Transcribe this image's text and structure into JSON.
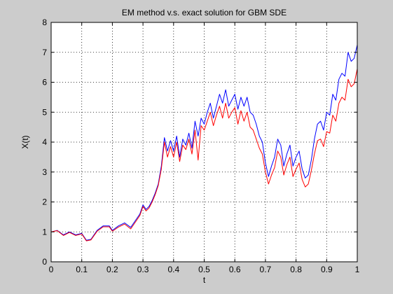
{
  "window": {
    "background": "#cccccc"
  },
  "chart_data": {
    "type": "line",
    "title": "EM method v.s. exact solution for GBM SDE",
    "xlabel": "t",
    "ylabel": "X(t)",
    "xlim": [
      0,
      1
    ],
    "ylim": [
      0,
      8
    ],
    "xticks": [
      0,
      0.1,
      0.2,
      0.3,
      0.4,
      0.5,
      0.6,
      0.7,
      0.8,
      0.9,
      1
    ],
    "xtick_labels": [
      "0",
      "0.1",
      "0.2",
      "0.3",
      "0.4",
      "0.5",
      "0.6",
      "0.7",
      "0.8",
      "0.9",
      "1"
    ],
    "yticks": [
      0,
      1,
      2,
      3,
      4,
      5,
      6,
      7,
      8
    ],
    "ytick_labels": [
      "0",
      "1",
      "2",
      "3",
      "4",
      "5",
      "6",
      "7",
      "8"
    ],
    "grid": true,
    "series": [
      {
        "color": "#0000ff",
        "x": [
          0,
          0.02,
          0.04,
          0.06,
          0.08,
          0.1,
          0.115,
          0.13,
          0.15,
          0.17,
          0.19,
          0.2,
          0.22,
          0.24,
          0.26,
          0.28,
          0.29,
          0.3,
          0.31,
          0.32,
          0.33,
          0.34,
          0.35,
          0.36,
          0.37,
          0.38,
          0.39,
          0.4,
          0.41,
          0.42,
          0.43,
          0.44,
          0.45,
          0.46,
          0.47,
          0.48,
          0.49,
          0.5,
          0.51,
          0.52,
          0.53,
          0.54,
          0.55,
          0.56,
          0.57,
          0.58,
          0.59,
          0.6,
          0.61,
          0.62,
          0.63,
          0.64,
          0.65,
          0.66,
          0.67,
          0.68,
          0.69,
          0.7,
          0.71,
          0.72,
          0.73,
          0.74,
          0.75,
          0.76,
          0.77,
          0.78,
          0.79,
          0.8,
          0.81,
          0.82,
          0.83,
          0.84,
          0.85,
          0.86,
          0.87,
          0.88,
          0.89,
          0.9,
          0.91,
          0.92,
          0.93,
          0.94,
          0.95,
          0.96,
          0.97,
          0.98,
          0.99,
          1.0
        ],
        "y": [
          1.0,
          1.05,
          0.9,
          1.0,
          0.9,
          0.95,
          0.72,
          0.75,
          1.05,
          1.2,
          1.2,
          1.05,
          1.2,
          1.3,
          1.15,
          1.45,
          1.6,
          1.9,
          1.75,
          1.85,
          2.05,
          2.3,
          2.6,
          3.2,
          4.15,
          3.7,
          4.05,
          3.7,
          4.2,
          3.5,
          4.1,
          3.9,
          4.3,
          3.8,
          4.7,
          4.2,
          4.8,
          4.6,
          5.0,
          5.3,
          4.8,
          5.2,
          5.6,
          5.3,
          5.75,
          5.2,
          5.4,
          5.6,
          5.1,
          5.5,
          5.2,
          5.5,
          5.0,
          4.9,
          4.6,
          4.2,
          4.0,
          3.3,
          2.85,
          3.2,
          3.5,
          4.1,
          3.9,
          3.2,
          3.6,
          3.9,
          3.2,
          3.5,
          3.7,
          3.1,
          2.8,
          2.9,
          3.4,
          4.1,
          4.6,
          4.7,
          4.4,
          5.0,
          4.9,
          5.6,
          5.4,
          6.1,
          6.3,
          6.2,
          7.0,
          6.7,
          6.8,
          7.25
        ]
      },
      {
        "color": "#ff0000",
        "x": [
          0,
          0.02,
          0.04,
          0.06,
          0.08,
          0.1,
          0.115,
          0.13,
          0.15,
          0.17,
          0.19,
          0.2,
          0.22,
          0.24,
          0.26,
          0.28,
          0.29,
          0.3,
          0.31,
          0.32,
          0.33,
          0.34,
          0.35,
          0.36,
          0.37,
          0.38,
          0.39,
          0.4,
          0.41,
          0.42,
          0.43,
          0.44,
          0.45,
          0.46,
          0.47,
          0.48,
          0.49,
          0.5,
          0.51,
          0.52,
          0.53,
          0.54,
          0.55,
          0.56,
          0.57,
          0.58,
          0.59,
          0.6,
          0.61,
          0.62,
          0.63,
          0.64,
          0.65,
          0.66,
          0.67,
          0.68,
          0.69,
          0.7,
          0.71,
          0.72,
          0.73,
          0.74,
          0.75,
          0.76,
          0.77,
          0.78,
          0.79,
          0.8,
          0.81,
          0.82,
          0.83,
          0.84,
          0.85,
          0.86,
          0.87,
          0.88,
          0.89,
          0.9,
          0.91,
          0.92,
          0.93,
          0.94,
          0.95,
          0.96,
          0.97,
          0.98,
          0.99,
          1.0
        ],
        "y": [
          1.0,
          1.04,
          0.88,
          0.98,
          0.88,
          0.93,
          0.7,
          0.73,
          1.02,
          1.17,
          1.17,
          1.02,
          1.16,
          1.26,
          1.1,
          1.4,
          1.55,
          1.85,
          1.7,
          1.8,
          2.0,
          2.25,
          2.55,
          3.1,
          4.0,
          3.5,
          3.85,
          3.5,
          4.0,
          3.35,
          3.9,
          3.75,
          4.1,
          3.6,
          4.4,
          3.4,
          4.55,
          4.4,
          4.7,
          5.0,
          4.55,
          4.9,
          5.2,
          4.8,
          5.3,
          4.8,
          5.0,
          5.15,
          4.6,
          5.05,
          4.7,
          5.0,
          4.5,
          4.4,
          4.1,
          3.8,
          3.6,
          3.0,
          2.6,
          2.9,
          3.15,
          3.7,
          3.5,
          2.9,
          3.25,
          3.5,
          2.85,
          3.1,
          3.3,
          2.75,
          2.5,
          2.6,
          3.05,
          3.6,
          4.05,
          4.1,
          3.85,
          4.35,
          4.3,
          4.9,
          4.7,
          5.3,
          5.5,
          5.4,
          6.1,
          5.85,
          5.95,
          6.45
        ]
      }
    ]
  }
}
